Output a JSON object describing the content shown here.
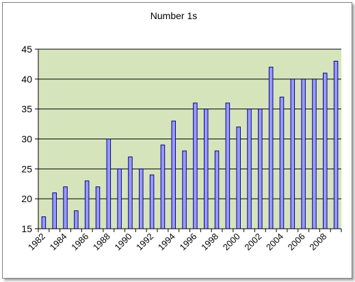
{
  "chart_data": {
    "type": "bar",
    "title": "Number 1s",
    "xlabel": "",
    "ylabel": "",
    "ylim": [
      15,
      45
    ],
    "yticks": [
      "15",
      "20",
      "25",
      "30",
      "35",
      "40",
      "45"
    ],
    "grid": true,
    "legend": "none",
    "categories": [
      "1982",
      "1983",
      "1984",
      "1985",
      "1986",
      "1987",
      "1988",
      "1989",
      "1990",
      "1991",
      "1992",
      "1993",
      "1994",
      "1995",
      "1996",
      "1997",
      "1998",
      "1999",
      "2000",
      "2001",
      "2002",
      "2003",
      "2004",
      "2005",
      "2006",
      "2007",
      "2008",
      "2009"
    ],
    "tick_labels": [
      "1982",
      "1984",
      "1986",
      "1988",
      "1990",
      "1992",
      "1994",
      "1996",
      "1998",
      "2000",
      "2002",
      "2004",
      "2006",
      "2008"
    ],
    "values": [
      17,
      21,
      22,
      18,
      23,
      22,
      30,
      25,
      27,
      25,
      24,
      29,
      33,
      28,
      36,
      35,
      28,
      36,
      32,
      35,
      35,
      42,
      37,
      40,
      40,
      40,
      41,
      43
    ],
    "colors": {
      "plot_background": "#d6e4bc",
      "bar_fill": "#9999ff",
      "bar_stroke": "#000080",
      "gridline": "#000000"
    }
  }
}
